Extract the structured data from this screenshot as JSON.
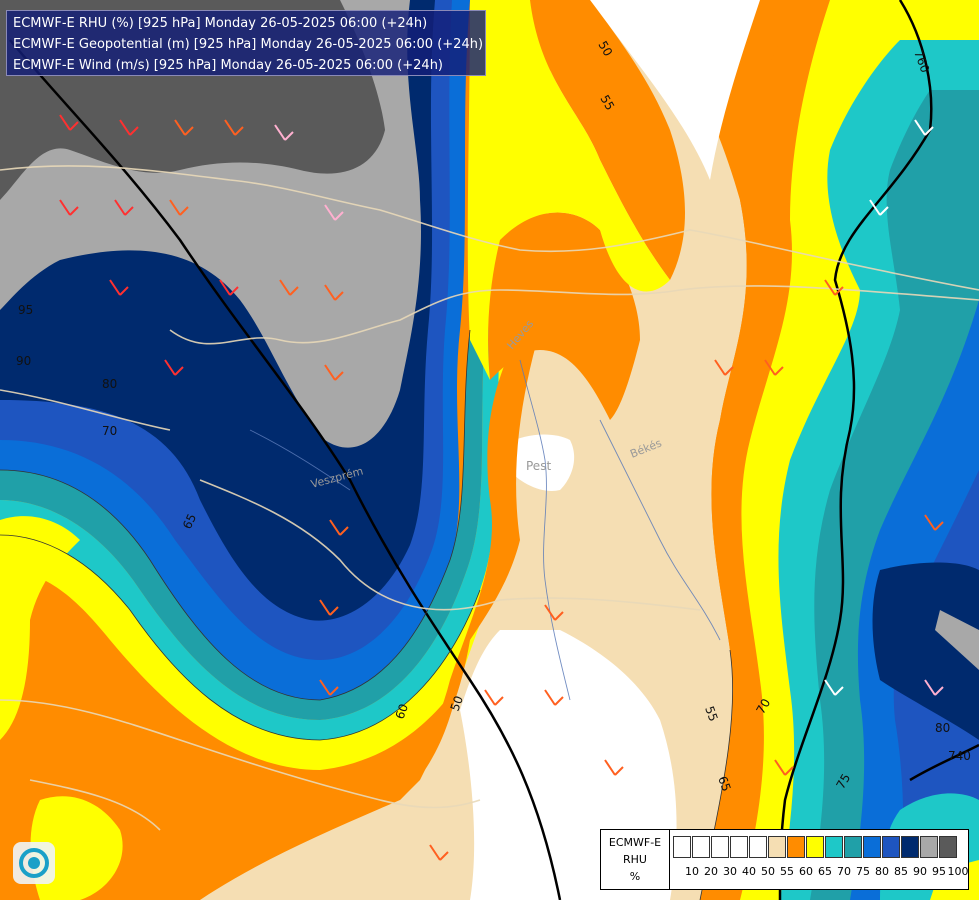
{
  "header": {
    "line1": "ECMWF-E RHU (%) [925 hPa] Monday 26-05-2025 06:00 (+24h)",
    "line2": "ECMWF-E Geopotential (m) [925 hPa] Monday 26-05-2025 06:00 (+24h)",
    "line3": "ECMWF-E Wind (m/s) [925 hPa] Monday 26-05-2025 06:00 (+24h)"
  },
  "legend": {
    "model": "ECMWF-E",
    "variable": "RHU",
    "unit": "%",
    "levels": [
      "10",
      "20",
      "30",
      "40",
      "50",
      "55",
      "60",
      "65",
      "70",
      "75",
      "80",
      "85",
      "90",
      "95",
      "100"
    ],
    "colors": [
      "#ffffff",
      "#ffffff",
      "#ffffff",
      "#ffffff",
      "#ffffff",
      "#f5deb3",
      "#ff8c00",
      "#ffff00",
      "#1ec8c8",
      "#20a0a8",
      "#0a6ed8",
      "#1e55c0",
      "#002a6e",
      "#a8a8a8",
      "#5a5a5a"
    ]
  },
  "map_labels": {
    "pest": "Pest",
    "bekes": "Békés",
    "heves": "Heves",
    "veszprem": "Veszprém"
  },
  "contour_labels": {
    "c50a": "50",
    "c55a": "55",
    "c50b": "50",
    "c60a": "60",
    "c55b": "55",
    "c65a": "65",
    "c70a": "70",
    "c75a": "75",
    "c80a": "80",
    "c90a": "90",
    "c95a": "95",
    "c70b": "70",
    "c65b": "65",
    "c80b": "80",
    "c760": "760",
    "c740": "740"
  },
  "colors": {
    "orange": "#ff8c00",
    "yellow": "#ffff00",
    "wheat": "#f5deb3",
    "cyan": "#1ec8c8",
    "teal": "#20a0a8",
    "blue": "#0a6ed8",
    "darkblue": "#002a6e",
    "grey": "#a8a8a8",
    "darkgrey": "#5a5a5a",
    "header_bg": "#141e78"
  }
}
